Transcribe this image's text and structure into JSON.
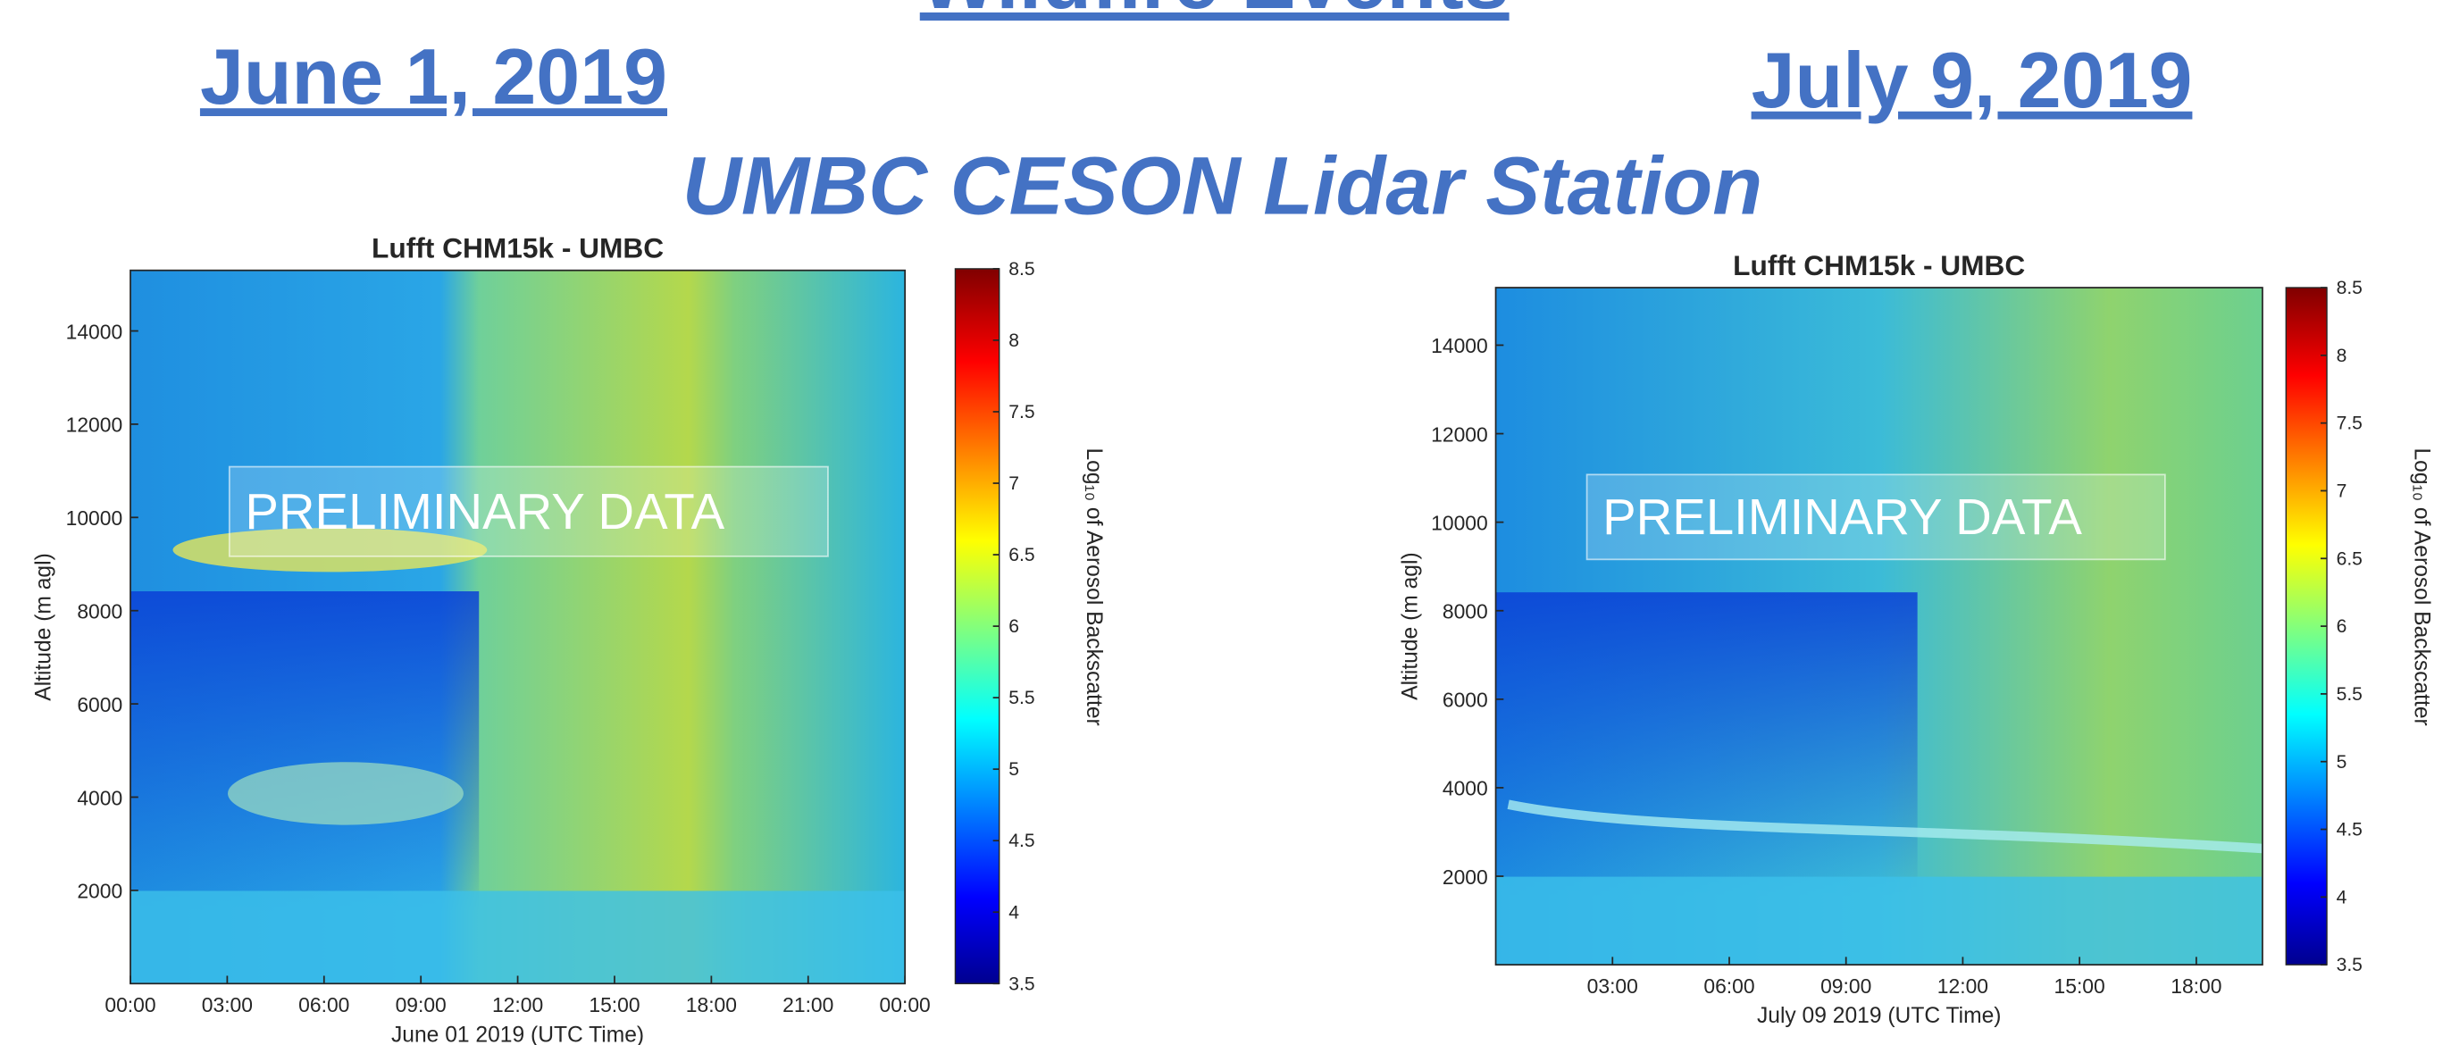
{
  "header": {
    "title": "Wildfire Events",
    "left_date": "June 1, 2019",
    "right_date": "July 9, 2019",
    "subtitle": "UMBC CESON Lidar Station"
  },
  "chart_data": [
    {
      "type": "heatmap",
      "title": "Lufft CHM15k - UMBC",
      "xlabel": "June 01 2019  (UTC Time)",
      "ylabel": "Altitude (m agl)",
      "xlim": [
        0,
        24
      ],
      "xticks": [
        {
          "value": 0,
          "label": "00:00"
        },
        {
          "value": 3,
          "label": "03:00"
        },
        {
          "value": 6,
          "label": "06:00"
        },
        {
          "value": 9,
          "label": "09:00"
        },
        {
          "value": 12,
          "label": "12:00"
        },
        {
          "value": 15,
          "label": "15:00"
        },
        {
          "value": 18,
          "label": "18:00"
        },
        {
          "value": 21,
          "label": "21:00"
        },
        {
          "value": 24,
          "label": "00:00"
        }
      ],
      "ylim": [
        0,
        15300
      ],
      "yticks": [
        2000,
        4000,
        6000,
        8000,
        10000,
        12000,
        14000
      ],
      "clim": [
        3.5,
        8.5
      ],
      "cticks": [
        3.5,
        4,
        4.5,
        5,
        5.5,
        6,
        6.5,
        7,
        7.5,
        8,
        8.5
      ],
      "colorbar_label": "Log₁₀ of Aerosol Backscatter",
      "watermark": "PRELIMINARY DATA"
    },
    {
      "type": "heatmap",
      "title": "Lufft CHM15k - UMBC",
      "xlabel": "July 09 2019  (UTC Time)",
      "ylabel": "Altitude (m agl)",
      "xlim": [
        0,
        19.7
      ],
      "xticks": [
        {
          "value": 3,
          "label": "03:00"
        },
        {
          "value": 6,
          "label": "06:00"
        },
        {
          "value": 9,
          "label": "09:00"
        },
        {
          "value": 12,
          "label": "12:00"
        },
        {
          "value": 15,
          "label": "15:00"
        },
        {
          "value": 18,
          "label": "18:00"
        }
      ],
      "ylim": [
        0,
        15300
      ],
      "yticks": [
        2000,
        4000,
        6000,
        8000,
        10000,
        12000,
        14000
      ],
      "clim": [
        3.5,
        8.5
      ],
      "cticks": [
        3.5,
        4,
        4.5,
        5,
        5.5,
        6,
        6.5,
        7,
        7.5,
        8,
        8.5
      ],
      "colorbar_label": "Log₁₀ of Aerosol Backscatter",
      "watermark": "PRELIMINARY DATA"
    }
  ]
}
